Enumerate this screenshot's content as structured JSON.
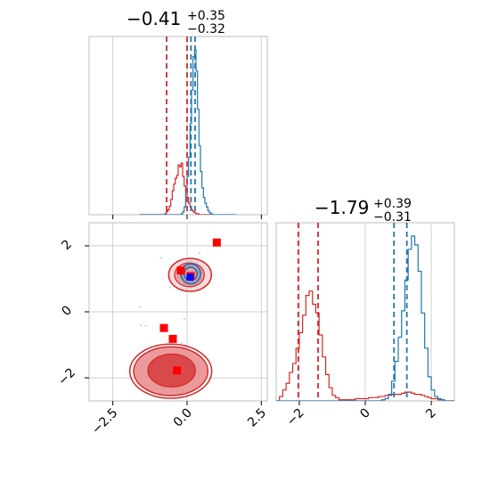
{
  "chart_data": {
    "type": "corner",
    "colors": {
      "blue": "#1f77b4",
      "red": "#d62728",
      "red_fill": "#ea9a9a",
      "red_core": "#d9494b",
      "grid": "#d0d0d0",
      "blue_scatter": "#c6d4ea"
    },
    "titles": {
      "p0": {
        "main": "−0.41",
        "sup": "+0.35",
        "sub": "−0.32"
      },
      "p1": {
        "main": "−1.79",
        "sup": "+0.39",
        "sub": "−0.31"
      }
    },
    "x0_ticks": [
      {
        "value": -2.5,
        "label": "−2.5"
      },
      {
        "value": 0.0,
        "label": "0.0"
      },
      {
        "value": 2.5,
        "label": "2.5"
      }
    ],
    "x1_ticks": [
      {
        "value": -2,
        "label": "−2"
      },
      {
        "value": 0,
        "label": "0"
      },
      {
        "value": 2,
        "label": "2"
      }
    ],
    "y1_ticks": [
      {
        "value": 2,
        "label": "2"
      },
      {
        "value": 0,
        "label": "0"
      },
      {
        "value": -2,
        "label": "−2"
      }
    ],
    "x0_range": [
      -3.3,
      2.7
    ],
    "x1_range": [
      -2.7,
      2.7
    ],
    "grid": true,
    "hist_p0": {
      "bins_start": -1.6,
      "bin_width": 0.05,
      "red": [
        0,
        0,
        0,
        0,
        0,
        0,
        0,
        0,
        0,
        0,
        0,
        0,
        0,
        0,
        0,
        0,
        0,
        1,
        3,
        5,
        9,
        16,
        25,
        32,
        38,
        41,
        52,
        50,
        54,
        40,
        30,
        25,
        18,
        12,
        8,
        5,
        3,
        2,
        1,
        1,
        0,
        0,
        0,
        0,
        0,
        0,
        0,
        0
      ],
      "blue": [
        0,
        0,
        0,
        0,
        0,
        0,
        0,
        0,
        0,
        0,
        0,
        0,
        0,
        0,
        0,
        0,
        0,
        0,
        0,
        0,
        0,
        0,
        0,
        0,
        0,
        0,
        0,
        0,
        1,
        3,
        8,
        25,
        40,
        60,
        95,
        130,
        165,
        172,
        150,
        110,
        72,
        45,
        28,
        18,
        12,
        8,
        4,
        2,
        1,
        0,
        0,
        0,
        0,
        0,
        0,
        0,
        0,
        0,
        0,
        0,
        0,
        0,
        0,
        0,
        0
      ]
    },
    "hist_p1": {
      "bins_start": -2.7,
      "bin_width": 0.1,
      "red": [
        0,
        4,
        10,
        16,
        26,
        34,
        48,
        62,
        78,
        96,
        100,
        88,
        80,
        60,
        40,
        24,
        12,
        5,
        3,
        1,
        1,
        1,
        1,
        1,
        2,
        2,
        2,
        2,
        3,
        3,
        3,
        4,
        4,
        5,
        5,
        6,
        6,
        6,
        7,
        8,
        8,
        7,
        6,
        6,
        5,
        4,
        3,
        2,
        2,
        1,
        1,
        0,
        0,
        0
      ],
      "blue": [
        0,
        0,
        0,
        0,
        0,
        0,
        0,
        0,
        0,
        0,
        0,
        0,
        0,
        0,
        0,
        0,
        0,
        0,
        0,
        0,
        0,
        0,
        0,
        0,
        0,
        0,
        0,
        0,
        0,
        0,
        0,
        0,
        1,
        2,
        6,
        18,
        36,
        58,
        82,
        110,
        138,
        150,
        142,
        118,
        80,
        48,
        22,
        10,
        4,
        2,
        1,
        0,
        0,
        0
      ]
    },
    "vlines_p0": {
      "red": [
        -0.69,
        0.0
      ],
      "blue": [
        0.13,
        0.27
      ]
    },
    "vlines_p1": {
      "red": [
        -2.03,
        -1.43
      ],
      "blue": [
        0.87,
        1.26
      ]
    },
    "markers_red": [
      [
        1.0,
        2.1
      ],
      [
        -0.21,
        1.25
      ],
      [
        0.12,
        1.08
      ],
      [
        -0.78,
        -0.49
      ],
      [
        -0.48,
        -0.82
      ],
      [
        -0.34,
        -1.78
      ]
    ],
    "markers_blue": [
      [
        0.1,
        1.05
      ]
    ],
    "contours_blue": [
      {
        "cx": 0.12,
        "cy": 1.15,
        "rx": 0.33,
        "ry": 0.3
      },
      {
        "cx": 0.12,
        "cy": 1.15,
        "rx": 0.22,
        "ry": 0.2
      }
    ],
    "contours_red_upper": [
      {
        "cx": 0.1,
        "cy": 1.12,
        "rx": 0.72,
        "ry": 0.5
      },
      {
        "cx": 0.08,
        "cy": 1.12,
        "rx": 0.5,
        "ry": 0.36
      }
    ],
    "contours_red_lower": [
      {
        "cx": -0.55,
        "cy": -1.8,
        "rx": 1.38,
        "ry": 0.82,
        "level": "outer"
      },
      {
        "cx": -0.55,
        "cy": -1.8,
        "rx": 1.25,
        "ry": 0.74,
        "level": "fill"
      },
      {
        "cx": -0.52,
        "cy": -1.78,
        "rx": 0.8,
        "ry": 0.5,
        "level": "core"
      }
    ]
  }
}
